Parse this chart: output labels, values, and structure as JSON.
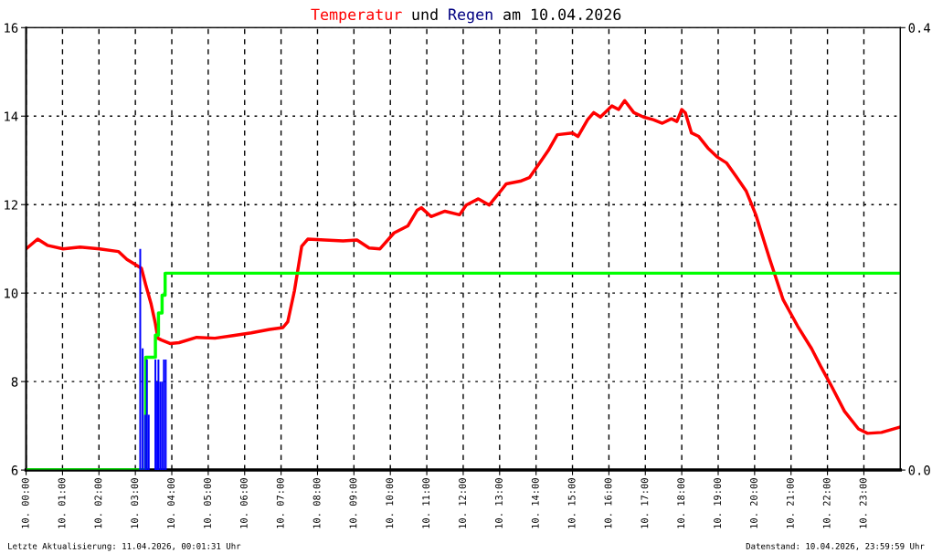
{
  "chart_data": {
    "type": "line",
    "title": "Temperatur und Regen am 10.04.2026",
    "xlim": [
      "2026-04-10T00:00",
      "2026-04-11T00:00"
    ],
    "xticks": [
      {
        "value": "2026-04-10T00:00",
        "label": "10. 00:00"
      },
      {
        "value": "2026-04-10T01:00",
        "label": "10. 01:00"
      },
      {
        "value": "2026-04-10T02:00",
        "label": "10. 02:00"
      },
      {
        "value": "2026-04-10T03:00",
        "label": "10. 03:00"
      },
      {
        "value": "2026-04-10T04:00",
        "label": "10. 04:00"
      },
      {
        "value": "2026-04-10T05:00",
        "label": "10. 05:00"
      },
      {
        "value": "2026-04-10T06:00",
        "label": "10. 06:00"
      },
      {
        "value": "2026-04-10T07:00",
        "label": "10. 07:00"
      },
      {
        "value": "2026-04-10T08:00",
        "label": "10. 08:00"
      },
      {
        "value": "2026-04-10T09:00",
        "label": "10. 09:00"
      },
      {
        "value": "2026-04-10T10:00",
        "label": "10. 10:00"
      },
      {
        "value": "2026-04-10T11:00",
        "label": "10. 11:00"
      },
      {
        "value": "2026-04-10T12:00",
        "label": "10. 12:00"
      },
      {
        "value": "2026-04-10T13:00",
        "label": "10. 13:00"
      },
      {
        "value": "2026-04-10T14:00",
        "label": "10. 14:00"
      },
      {
        "value": "2026-04-10T15:00",
        "label": "10. 15:00"
      },
      {
        "value": "2026-04-10T16:00",
        "label": "10. 16:00"
      },
      {
        "value": "2026-04-10T17:00",
        "label": "10. 17:00"
      },
      {
        "value": "2026-04-10T18:00",
        "label": "10. 18:00"
      },
      {
        "value": "2026-04-10T19:00",
        "label": "10. 19:00"
      },
      {
        "value": "2026-04-10T20:00",
        "label": "10. 20:00"
      },
      {
        "value": "2026-04-10T21:00",
        "label": "10. 21:00"
      },
      {
        "value": "2026-04-10T22:00",
        "label": "10. 22:00"
      },
      {
        "value": "2026-04-10T23:00",
        "label": "10. 23:00"
      }
    ],
    "ylim": [
      6,
      16
    ],
    "yticks": [
      6,
      8,
      10,
      12,
      14,
      16
    ],
    "y2lim": [
      0,
      0.4
    ],
    "y2ticks": [
      {
        "value": 0,
        "label": "0.0"
      },
      {
        "value": 0.4,
        "label": "0.4"
      }
    ],
    "grid": true,
    "series": [
      {
        "type": "bar",
        "axis": "y2",
        "color": "#0000ff",
        "x": [
          "2026-04-10T03:08",
          "2026-04-10T03:12",
          "2026-04-10T03:16",
          "2026-04-10T03:19",
          "2026-04-10T03:22",
          "2026-04-10T03:33",
          "2026-04-10T03:36",
          "2026-04-10T03:38",
          "2026-04-10T03:41",
          "2026-04-10T03:44",
          "2026-04-10T03:47",
          "2026-04-10T03:50"
        ],
        "values": [
          0.2,
          0.11,
          0.05,
          0.1,
          0.05,
          0.1,
          0.08,
          0.1,
          0.08,
          0.08,
          0.1,
          0.1
        ]
      },
      {
        "type": "step",
        "axis": "y2",
        "color": "#00ff00",
        "x": [
          "2026-04-10T00:00",
          "2026-04-10T03:17",
          "2026-04-10T03:33",
          "2026-04-10T03:38",
          "2026-04-10T03:44",
          "2026-04-10T03:49",
          "2026-04-11T00:00"
        ],
        "values": [
          0,
          0.102,
          0.122,
          0.142,
          0.158,
          0.178,
          0.178
        ]
      },
      {
        "color": "#ff0000",
        "x": [
          "2026-04-10T00:00",
          "2026-04-10T00:19",
          "2026-04-10T00:35",
          "2026-04-10T01:01",
          "2026-04-10T01:29",
          "2026-04-10T02:01",
          "2026-04-10T02:32",
          "2026-04-10T02:46",
          "2026-04-10T03:10",
          "2026-04-10T03:17",
          "2026-04-10T03:26",
          "2026-04-10T03:33",
          "2026-04-10T03:37",
          "2026-04-10T03:43",
          "2026-04-10T03:57",
          "2026-04-10T04:12",
          "2026-04-10T04:41",
          "2026-04-10T05:11",
          "2026-04-10T05:41",
          "2026-04-10T06:11",
          "2026-04-10T06:41",
          "2026-04-10T07:03",
          "2026-04-10T07:11",
          "2026-04-10T07:22",
          "2026-04-10T07:34",
          "2026-04-10T07:44",
          "2026-04-10T08:12",
          "2026-04-10T08:42",
          "2026-04-10T09:05",
          "2026-04-10T09:25",
          "2026-04-10T09:43",
          "2026-04-10T10:06",
          "2026-04-10T10:29",
          "2026-04-10T10:44",
          "2026-04-10T10:51",
          "2026-04-10T11:07",
          "2026-04-10T11:30",
          "2026-04-10T11:54",
          "2026-04-10T12:05",
          "2026-04-10T12:25",
          "2026-04-10T12:43",
          "2026-04-10T13:03",
          "2026-04-10T13:11",
          "2026-04-10T13:34",
          "2026-04-10T13:49",
          "2026-04-10T14:05",
          "2026-04-10T14:20",
          "2026-04-10T14:35",
          "2026-04-10T15:00",
          "2026-04-10T15:09",
          "2026-04-10T15:25",
          "2026-04-10T15:35",
          "2026-04-10T15:46",
          "2026-04-10T16:05",
          "2026-04-10T16:16",
          "2026-04-10T16:26",
          "2026-04-10T16:41",
          "2026-04-10T16:57",
          "2026-04-10T17:13",
          "2026-04-10T17:28",
          "2026-04-10T17:43",
          "2026-04-10T17:52",
          "2026-04-10T18:00",
          "2026-04-10T18:06",
          "2026-04-10T18:16",
          "2026-04-10T18:28",
          "2026-04-10T18:43",
          "2026-04-10T18:58",
          "2026-04-10T19:14",
          "2026-04-10T19:30",
          "2026-04-10T19:46",
          "2026-04-10T20:02",
          "2026-04-10T20:25",
          "2026-04-10T20:47",
          "2026-04-10T21:11",
          "2026-04-10T21:34",
          "2026-04-10T21:49",
          "2026-04-10T22:05",
          "2026-04-10T22:28",
          "2026-04-10T22:51",
          "2026-04-10T23:06",
          "2026-04-10T23:29",
          "2026-04-10T23:59"
        ],
        "values": [
          11.0,
          11.22,
          11.08,
          11.0,
          11.04,
          11.0,
          10.94,
          10.76,
          10.56,
          10.19,
          9.75,
          9.31,
          8.98,
          8.94,
          8.86,
          8.88,
          9.0,
          8.98,
          9.04,
          9.1,
          9.18,
          9.22,
          9.35,
          10.05,
          11.06,
          11.22,
          11.2,
          11.18,
          11.2,
          11.02,
          11.0,
          11.36,
          11.52,
          11.87,
          11.93,
          11.73,
          11.85,
          11.77,
          11.99,
          12.13,
          11.99,
          12.33,
          12.47,
          12.53,
          12.61,
          12.92,
          13.22,
          13.58,
          13.62,
          13.54,
          13.92,
          14.08,
          13.98,
          14.23,
          14.15,
          14.35,
          14.08,
          13.98,
          13.92,
          13.84,
          13.94,
          13.88,
          14.15,
          14.07,
          13.62,
          13.54,
          13.28,
          13.08,
          12.94,
          12.63,
          12.31,
          11.77,
          10.76,
          9.85,
          9.25,
          8.74,
          8.34,
          7.94,
          7.33,
          6.93,
          6.83,
          6.85,
          6.97
        ]
      }
    ],
    "annotations": [
      "Letzte Aktualisierung: 11.04.2026, 00:01:31 Uhr",
      "Datenstand: 10.04.2026, 23:59:59 Uhr"
    ]
  }
}
